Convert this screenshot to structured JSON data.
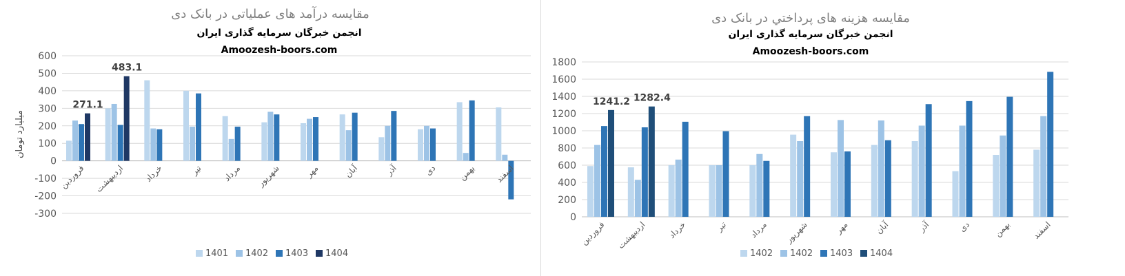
{
  "chart_data": [
    {
      "type": "bar",
      "title": "مقایسه درآمد های عملیاتی در بانک دی",
      "subtitle1": "انجمن خبرگان سرمایه گذاری ایران",
      "subtitle2": "Amoozesh-boors.com",
      "ylabel": "میلیارد تومان",
      "xlabel": "",
      "ylim": [
        -300,
        600
      ],
      "yticks": [
        -300,
        -200,
        -100,
        0,
        100,
        200,
        300,
        400,
        500,
        600
      ],
      "grid": true,
      "legend_position": "bottom",
      "categories": [
        "فروردین",
        "اردیبهشت",
        "خرداد",
        "تیر",
        "مرداد",
        "شهریور",
        "مهر",
        "آبان",
        "آذر",
        "دی",
        "بهمن",
        "اسفند"
      ],
      "series": [
        {
          "name": "1401",
          "color": "#bdd7ee",
          "values": [
            115,
            300,
            460,
            400,
            255,
            220,
            215,
            265,
            135,
            180,
            335,
            305
          ]
        },
        {
          "name": "1402",
          "color": "#9dc3e6",
          "values": [
            230,
            325,
            185,
            195,
            125,
            280,
            240,
            175,
            200,
            200,
            45,
            35
          ]
        },
        {
          "name": "1403",
          "color": "#2e75b6",
          "values": [
            210,
            205,
            180,
            385,
            195,
            265,
            250,
            275,
            285,
            185,
            345,
            -220
          ]
        },
        {
          "name": "1404",
          "color": "#1f3864",
          "values": [
            271.1,
            483.1,
            null,
            null,
            null,
            null,
            null,
            null,
            null,
            null,
            null,
            null
          ]
        }
      ],
      "annotations": [
        {
          "category": "فروردین",
          "series": "1404",
          "text": "271.1"
        },
        {
          "category": "اردیبهشت",
          "series": "1404",
          "text": "483.1"
        }
      ]
    },
    {
      "type": "bar",
      "title": "مقایسه هزینه های پرداختي در بانک دی",
      "subtitle1": "انجمن خبرگان سرمایه گذاری ایران",
      "subtitle2": "Amoozesh-boors.com",
      "ylabel": "",
      "xlabel": "",
      "ylim": [
        0,
        1800
      ],
      "yticks": [
        0,
        200,
        400,
        600,
        800,
        1000,
        1200,
        1400,
        1600,
        1800
      ],
      "grid": true,
      "legend_position": "bottom",
      "categories": [
        "فروردین",
        "اردیبهشت",
        "خرداد",
        "تیر",
        "مرداد",
        "شهریور",
        "مهر",
        "آبان",
        "آذر",
        "دی",
        "بهمن",
        "اسفند"
      ],
      "series": [
        {
          "name": "1402",
          "color": "#bdd7ee",
          "values": [
            590,
            575,
            600,
            600,
            600,
            955,
            750,
            835,
            880,
            530,
            720,
            780
          ]
        },
        {
          "name": "1402",
          "color": "#9dc3e6",
          "values": [
            835,
            430,
            665,
            600,
            730,
            880,
            1125,
            1120,
            1060,
            1060,
            945,
            1170
          ]
        },
        {
          "name": "1403",
          "color": "#2e75b6",
          "values": [
            1055,
            1040,
            1105,
            995,
            650,
            1170,
            760,
            890,
            1310,
            1345,
            1395,
            1685
          ]
        },
        {
          "name": "1404",
          "color": "#1f4e79",
          "values": [
            1241.2,
            1282.4,
            null,
            null,
            null,
            null,
            null,
            null,
            null,
            null,
            null,
            null
          ]
        }
      ],
      "annotations": [
        {
          "category": "فروردین",
          "series": "1404",
          "text": "1241.2"
        },
        {
          "category": "اردیبهشت",
          "series": "1404",
          "text": "1282.4"
        }
      ]
    }
  ]
}
